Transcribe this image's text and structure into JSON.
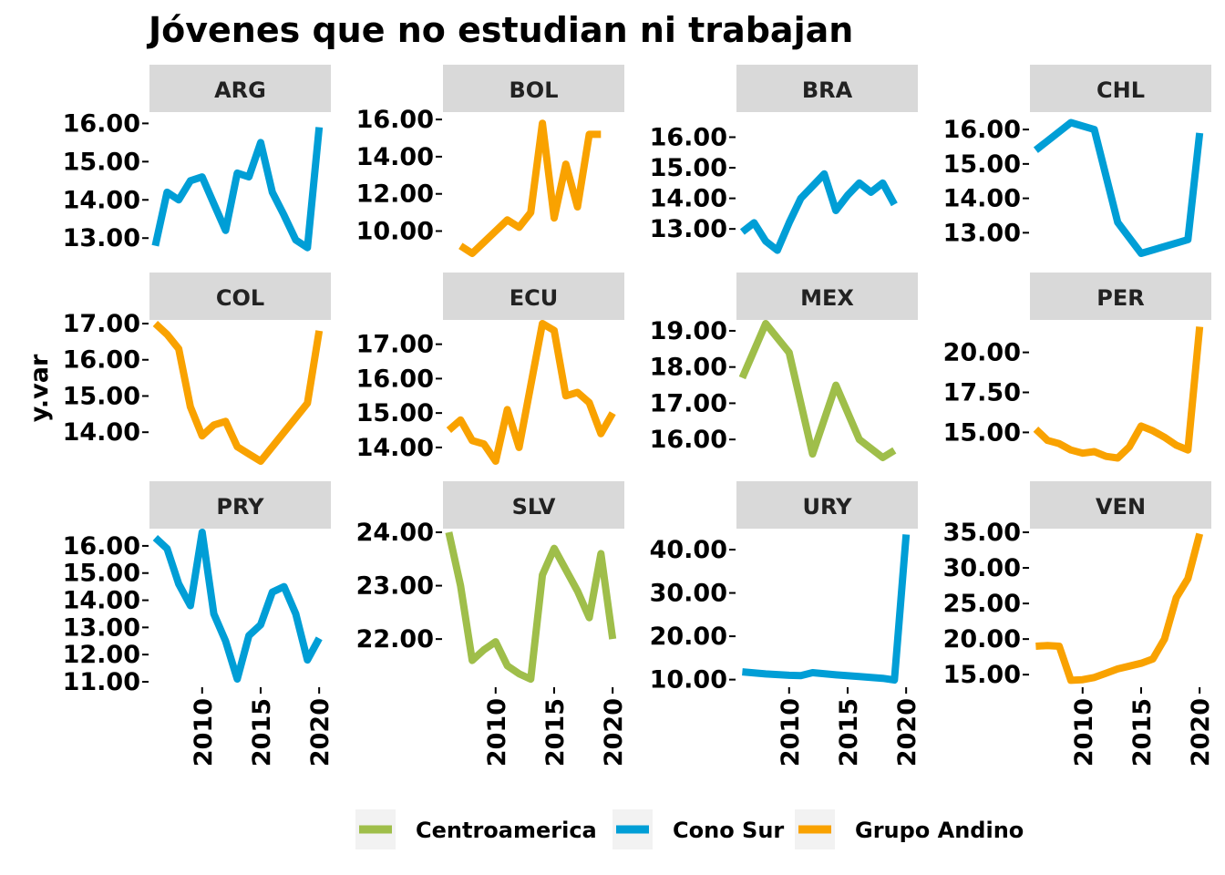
{
  "chart_data": {
    "type": "line",
    "title": "Jóvenes que no estudian ni trabajan",
    "ylabel": "y.var",
    "xlabel": "",
    "xlim": [
      2005.5,
      2021
    ],
    "x_ticks": [
      2010,
      2015,
      2020
    ],
    "x_tick_labels": [
      "2010",
      "2015",
      "2020"
    ],
    "colors": {
      "Centroamerica": "#9fbe4a",
      "Cono Sur": "#009ed6",
      "Grupo Andino": "#f9a200"
    },
    "strip_color": "#d9d9d9",
    "legend": {
      "position": "bottom",
      "entries": [
        "Centroamerica",
        "Cono Sur",
        "Grupo Andino"
      ]
    },
    "grid": false,
    "facets": [
      {
        "panel": "ARG",
        "group": "Cono Sur",
        "ylim": [
          12.6,
          16.2
        ],
        "y_ticks": [
          13,
          14,
          15,
          16
        ],
        "y_tick_labels": [
          "13.00",
          "14.00",
          "15.00",
          "16.00"
        ],
        "x": [
          2006,
          2007,
          2008,
          2009,
          2010,
          2011,
          2012,
          2013,
          2014,
          2015,
          2016,
          2017,
          2018,
          2019,
          2020
        ],
        "values": [
          12.8,
          14.2,
          14.0,
          14.5,
          14.6,
          13.9,
          13.2,
          14.7,
          14.6,
          15.5,
          14.2,
          13.6,
          12.95,
          12.75,
          15.9
        ]
      },
      {
        "panel": "BOL",
        "group": "Grupo Andino",
        "ylim": [
          8.8,
          16.2
        ],
        "y_ticks": [
          10,
          12,
          14,
          16
        ],
        "y_tick_labels": [
          "10.00",
          "12.00",
          "14.00",
          "16.00"
        ],
        "x": [
          2007,
          2008,
          2009,
          2010,
          2011,
          2012,
          2013,
          2014,
          2015,
          2016,
          2017,
          2018,
          2019
        ],
        "values": [
          9.2,
          8.8,
          9.4,
          10.0,
          10.6,
          10.2,
          11.0,
          15.8,
          10.7,
          13.6,
          11.3,
          15.2,
          15.2
        ]
      },
      {
        "panel": "BRA",
        "group": "Cono Sur",
        "ylim": [
          12.2,
          16.7
        ],
        "y_ticks": [
          13,
          14,
          15,
          16
        ],
        "y_tick_labels": [
          "13.00",
          "14.00",
          "15.00",
          "16.00"
        ],
        "x": [
          2006,
          2007,
          2008,
          2009,
          2010,
          2011,
          2012,
          2013,
          2014,
          2015,
          2016,
          2017,
          2018,
          2019
        ],
        "values": [
          12.9,
          13.2,
          12.6,
          12.3,
          13.2,
          14.0,
          14.4,
          14.8,
          13.6,
          14.1,
          14.5,
          14.2,
          14.5,
          13.8
        ]
      },
      {
        "panel": "CHL",
        "group": "Cono Sur",
        "ylim": [
          12.4,
          16.4
        ],
        "y_ticks": [
          13,
          14,
          15,
          16
        ],
        "y_tick_labels": [
          "13.00",
          "14.00",
          "15.00",
          "16.00"
        ],
        "x": [
          2006,
          2009,
          2011,
          2013,
          2015,
          2017,
          2019,
          2020
        ],
        "values": [
          15.4,
          16.2,
          16.0,
          13.3,
          12.4,
          12.6,
          12.8,
          15.9
        ]
      },
      {
        "panel": "COL",
        "group": "Grupo Andino",
        "ylim": [
          13.2,
          17.0
        ],
        "y_ticks": [
          14,
          15,
          16,
          17
        ],
        "y_tick_labels": [
          "14.00",
          "15.00",
          "16.00",
          "17.00"
        ],
        "x": [
          2006,
          2007,
          2008,
          2009,
          2010,
          2011,
          2012,
          2013,
          2014,
          2015,
          2016,
          2017,
          2018,
          2019,
          2020
        ],
        "values": [
          17.0,
          16.7,
          16.3,
          14.7,
          13.9,
          14.2,
          14.3,
          13.6,
          13.4,
          13.2,
          13.6,
          14.0,
          14.4,
          14.8,
          16.8
        ]
      },
      {
        "panel": "ECU",
        "group": "Grupo Andino",
        "ylim": [
          13.6,
          17.6
        ],
        "y_ticks": [
          14,
          15,
          16,
          17
        ],
        "y_tick_labels": [
          "14.00",
          "15.00",
          "16.00",
          "17.00"
        ],
        "x": [
          2006,
          2007,
          2008,
          2009,
          2010,
          2011,
          2012,
          2013,
          2014,
          2015,
          2016,
          2017,
          2018,
          2019,
          2020
        ],
        "values": [
          14.5,
          14.8,
          14.2,
          14.1,
          13.6,
          15.1,
          14.0,
          15.8,
          17.6,
          17.4,
          15.5,
          15.6,
          15.3,
          14.4,
          15.0
        ]
      },
      {
        "panel": "MEX",
        "group": "Centroamerica",
        "ylim": [
          15.4,
          19.2
        ],
        "y_ticks": [
          16,
          17,
          18,
          19
        ],
        "y_tick_labels": [
          "16.00",
          "17.00",
          "18.00",
          "19.00"
        ],
        "x": [
          2006,
          2008,
          2010,
          2012,
          2014,
          2016,
          2018,
          2019
        ],
        "values": [
          17.7,
          19.2,
          18.4,
          15.6,
          17.5,
          16.0,
          15.5,
          15.7
        ]
      },
      {
        "panel": "PER",
        "group": "Grupo Andino",
        "ylim": [
          13.2,
          21.8
        ],
        "y_ticks": [
          15,
          17.5,
          20
        ],
        "y_tick_labels": [
          "15.00",
          "17.50",
          "20.00"
        ],
        "x": [
          2006,
          2007,
          2008,
          2009,
          2010,
          2011,
          2012,
          2013,
          2014,
          2015,
          2016,
          2017,
          2018,
          2019,
          2020
        ],
        "values": [
          15.2,
          14.5,
          14.3,
          13.9,
          13.7,
          13.8,
          13.5,
          13.4,
          14.1,
          15.4,
          15.1,
          14.7,
          14.2,
          13.9,
          21.6
        ]
      },
      {
        "panel": "PRY",
        "group": "Cono Sur",
        "ylim": [
          11.0,
          16.5
        ],
        "y_ticks": [
          11,
          12,
          13,
          14,
          15,
          16
        ],
        "y_tick_labels": [
          "11.00",
          "12.00",
          "13.00",
          "14.00",
          "15.00",
          "16.00"
        ],
        "x": [
          2006,
          2007,
          2008,
          2009,
          2010,
          2011,
          2012,
          2013,
          2014,
          2015,
          2016,
          2017,
          2018,
          2019,
          2020
        ],
        "values": [
          16.3,
          15.9,
          14.6,
          13.8,
          16.5,
          13.5,
          12.5,
          11.1,
          12.7,
          13.1,
          14.3,
          14.5,
          13.5,
          11.8,
          12.6
        ]
      },
      {
        "panel": "SLV",
        "group": "Centroamerica",
        "ylim": [
          21.2,
          24.0
        ],
        "y_ticks": [
          22,
          23,
          24
        ],
        "y_tick_labels": [
          "22.00",
          "23.00",
          "24.00"
        ],
        "x": [
          2006,
          2007,
          2008,
          2009,
          2010,
          2011,
          2012,
          2013,
          2014,
          2015,
          2016,
          2017,
          2018,
          2019,
          2020
        ],
        "values": [
          24.0,
          23.0,
          21.6,
          21.8,
          21.95,
          21.5,
          21.35,
          21.25,
          23.2,
          23.7,
          23.3,
          22.9,
          22.4,
          23.6,
          22.0
        ]
      },
      {
        "panel": "URY",
        "group": "Cono Sur",
        "ylim": [
          9.5,
          44.0
        ],
        "y_ticks": [
          10,
          20,
          30,
          40
        ],
        "y_tick_labels": [
          "10.00",
          "20.00",
          "30.00",
          "40.00"
        ],
        "x": [
          2006,
          2008,
          2010,
          2011,
          2012,
          2014,
          2016,
          2018,
          2019,
          2020
        ],
        "values": [
          11.8,
          11.3,
          11.0,
          10.9,
          11.6,
          11.1,
          10.7,
          10.3,
          9.9,
          43.5
        ]
      },
      {
        "panel": "VEN",
        "group": "Grupo Andino",
        "ylim": [
          14.0,
          35.0
        ],
        "y_ticks": [
          15,
          20,
          25,
          30,
          35
        ],
        "y_tick_labels": [
          "15.00",
          "20.00",
          "25.00",
          "30.00",
          "35.00"
        ],
        "x": [
          2006,
          2007,
          2008,
          2009,
          2010,
          2011,
          2012,
          2013,
          2014,
          2015,
          2016,
          2017,
          2018,
          2019,
          2020
        ],
        "values": [
          19.0,
          19.1,
          19.0,
          14.2,
          14.3,
          14.6,
          15.2,
          15.8,
          16.2,
          16.6,
          17.2,
          20.0,
          25.8,
          28.5,
          34.8
        ]
      }
    ]
  }
}
